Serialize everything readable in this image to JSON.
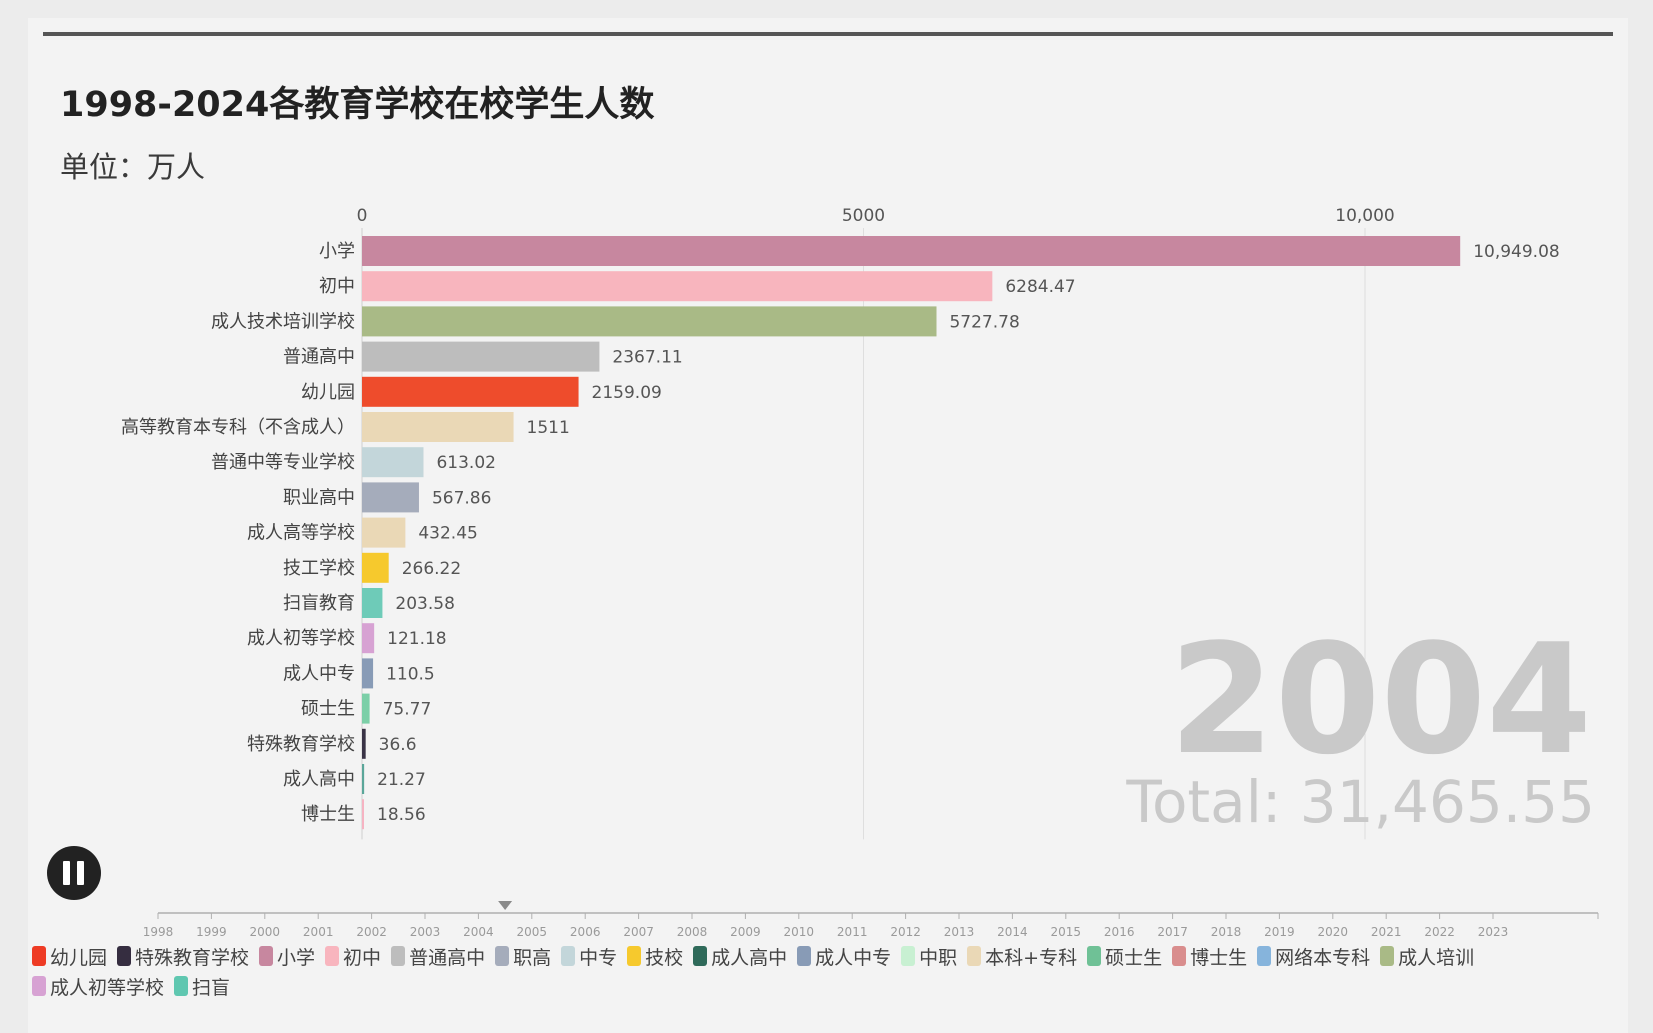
{
  "chart_data": {
    "type": "bar",
    "orientation": "horizontal",
    "title": "1998-2024各教育学校在校学生人数",
    "subtitle": "单位：万人",
    "xlim": [
      0,
      11500
    ],
    "xticks": [
      {
        "value": 0,
        "label": "0"
      },
      {
        "value": 5000,
        "label": "5000"
      },
      {
        "value": 10000,
        "label": "10,000"
      }
    ],
    "categories": [
      "小学",
      "初中",
      "成人技术培训学校",
      "普通高中",
      "幼儿园",
      "高等教育本专科（不含成人）",
      "普通中等专业学校",
      "职业高中",
      "成人高等学校",
      "技工学校",
      "扫盲教育",
      "成人初等学校",
      "成人中专",
      "硕士生",
      "特殊教育学校",
      "成人高中",
      "博士生"
    ],
    "values": [
      10949.08,
      6284.47,
      5727.78,
      2367.11,
      2159.09,
      1511,
      613.02,
      567.86,
      432.45,
      266.22,
      203.58,
      121.18,
      110.5,
      75.77,
      36.6,
      21.27,
      18.56
    ],
    "value_labels": [
      "10,949.08",
      "6284.47",
      "5727.78",
      "2367.11",
      "2159.09",
      "1511",
      "613.02",
      "567.86",
      "432.45",
      "266.22",
      "203.58",
      "121.18",
      "110.5",
      "75.77",
      "36.6",
      "21.27",
      "18.56"
    ],
    "colors": [
      "#c7879f",
      "#f8b5be",
      "#a9ba86",
      "#bdbdbd",
      "#ee4c2c",
      "#ead8b6",
      "#c3d6da",
      "#a5acbb",
      "#ead8b6",
      "#f6c92d",
      "#6ecbb8",
      "#d7a2d3",
      "#889bb6",
      "#7ccfa8",
      "#3a3346",
      "#5aa699",
      "#f6b3c2"
    ],
    "current_year": "2004",
    "total_label": "Total: 31,465.55",
    "timeline": {
      "years": [
        "1998",
        "1999",
        "2000",
        "2001",
        "2002",
        "2003",
        "2004",
        "2005",
        "2006",
        "2007",
        "2008",
        "2009",
        "2010",
        "2011",
        "2012",
        "2013",
        "2014",
        "2015",
        "2016",
        "2017",
        "2018",
        "2019",
        "2020",
        "2021",
        "2022",
        "2023"
      ],
      "position_year": 2004.5
    },
    "legend": [
      {
        "name": "幼儿园",
        "color": "#ee3b24"
      },
      {
        "name": "特殊教育学校",
        "color": "#352d40"
      },
      {
        "name": "小学",
        "color": "#c7879f"
      },
      {
        "name": "初中",
        "color": "#f8b5be"
      },
      {
        "name": "普通高中",
        "color": "#bdbdbd"
      },
      {
        "name": "职高",
        "color": "#a5acbb"
      },
      {
        "name": "中专",
        "color": "#c3d6da"
      },
      {
        "name": "技校",
        "color": "#f6c92d"
      },
      {
        "name": "成人高中",
        "color": "#2f6a5a"
      },
      {
        "name": "成人中专",
        "color": "#889bb6"
      },
      {
        "name": "中职",
        "color": "#c8f0d2"
      },
      {
        "name": "本科+专科",
        "color": "#ead8b6"
      },
      {
        "name": "硕士生",
        "color": "#6fc196"
      },
      {
        "name": "博士生",
        "color": "#d98d8d"
      },
      {
        "name": "网络本专科",
        "color": "#86b4dc"
      },
      {
        "name": "成人培训",
        "color": "#a9ba86"
      },
      {
        "name": "成人初等学校",
        "color": "#d7a2d3"
      },
      {
        "name": "扫盲",
        "color": "#5fc7b0"
      }
    ]
  }
}
